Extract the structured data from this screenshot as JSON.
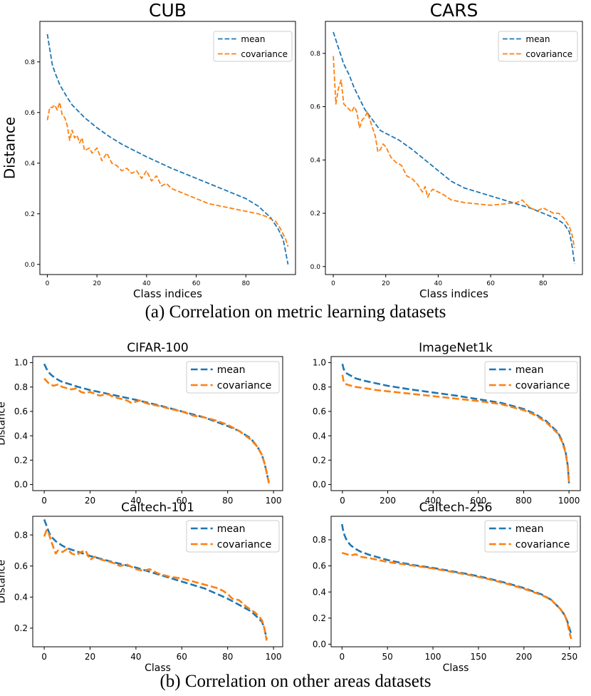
{
  "figure": {
    "caption_a": "(a) Correlation on metric learning datasets",
    "caption_b": "(b) Correlation on other areas datasets"
  },
  "colors": {
    "mean": "#1f77b4",
    "covariance": "#ff7f0e",
    "axis": "#000000"
  },
  "chart_data": [
    {
      "id": "cub",
      "type": "line",
      "title": "CUB",
      "xlabel": "Class indices",
      "ylabel": "Distance",
      "xlim": [
        -3,
        100
      ],
      "ylim": [
        -0.04,
        0.96
      ],
      "xticks": [
        0,
        20,
        40,
        60,
        80
      ],
      "yticks": [
        0.0,
        0.2,
        0.4,
        0.6,
        0.8
      ],
      "xtick_labels": [
        "0",
        "20",
        "40",
        "60",
        "80"
      ],
      "ytick_labels": [
        "0.0",
        "0.2",
        "0.4",
        "0.6",
        "0.8"
      ],
      "legend": [
        "mean",
        "covariance"
      ],
      "legend_position": "top-right",
      "series": [
        {
          "name": "mean",
          "x": [
            0,
            1,
            2,
            3,
            5,
            8,
            10,
            15,
            20,
            25,
            30,
            40,
            50,
            60,
            70,
            80,
            85,
            90,
            93,
            95,
            96,
            97
          ],
          "values": [
            0.91,
            0.85,
            0.79,
            0.76,
            0.71,
            0.66,
            0.63,
            0.58,
            0.54,
            0.505,
            0.475,
            0.425,
            0.38,
            0.34,
            0.3,
            0.26,
            0.23,
            0.185,
            0.14,
            0.1,
            0.05,
            0.0
          ]
        },
        {
          "name": "covariance",
          "x": [
            0,
            1,
            2,
            3,
            4,
            5,
            6,
            7,
            8,
            9,
            10,
            11,
            12,
            13,
            14,
            15,
            17,
            18,
            20,
            22,
            24,
            26,
            28,
            30,
            32,
            34,
            36,
            38,
            40,
            42,
            44,
            46,
            48,
            50,
            55,
            60,
            65,
            70,
            75,
            80,
            85,
            88,
            90,
            92,
            94,
            95,
            96,
            97
          ],
          "values": [
            0.57,
            0.62,
            0.62,
            0.63,
            0.61,
            0.64,
            0.59,
            0.58,
            0.55,
            0.49,
            0.53,
            0.5,
            0.51,
            0.48,
            0.5,
            0.45,
            0.46,
            0.44,
            0.46,
            0.41,
            0.44,
            0.4,
            0.39,
            0.37,
            0.38,
            0.36,
            0.37,
            0.34,
            0.37,
            0.33,
            0.35,
            0.31,
            0.32,
            0.3,
            0.28,
            0.26,
            0.24,
            0.23,
            0.22,
            0.21,
            0.2,
            0.19,
            0.18,
            0.17,
            0.14,
            0.12,
            0.1,
            0.07
          ]
        }
      ]
    },
    {
      "id": "cars",
      "type": "line",
      "title": "CARS",
      "xlabel": "Class indices",
      "ylabel": "",
      "xlim": [
        -3,
        95
      ],
      "ylim": [
        -0.03,
        0.92
      ],
      "xticks": [
        0,
        20,
        40,
        60,
        80
      ],
      "yticks": [
        0.0,
        0.2,
        0.4,
        0.6,
        0.8
      ],
      "xtick_labels": [
        "0",
        "20",
        "40",
        "60",
        "80"
      ],
      "ytick_labels": [
        "0.0",
        "0.2",
        "0.4",
        "0.6",
        "0.8"
      ],
      "legend": [
        "mean",
        "covariance"
      ],
      "legend_position": "top-right",
      "series": [
        {
          "name": "mean",
          "x": [
            0,
            2,
            4,
            6,
            8,
            10,
            12,
            15,
            18,
            20,
            25,
            30,
            35,
            40,
            45,
            50,
            55,
            60,
            65,
            70,
            75,
            80,
            85,
            88,
            90,
            91,
            92
          ],
          "values": [
            0.88,
            0.82,
            0.76,
            0.72,
            0.67,
            0.63,
            0.59,
            0.55,
            0.51,
            0.5,
            0.475,
            0.44,
            0.4,
            0.36,
            0.32,
            0.295,
            0.28,
            0.265,
            0.25,
            0.235,
            0.22,
            0.2,
            0.18,
            0.16,
            0.13,
            0.08,
            0.01
          ]
        },
        {
          "name": "covariance",
          "x": [
            0,
            1,
            2,
            3,
            4,
            5,
            6,
            7,
            8,
            9,
            10,
            11,
            12,
            13,
            14,
            15,
            16,
            17,
            18,
            19,
            20,
            22,
            24,
            26,
            28,
            30,
            32,
            34,
            35,
            36,
            37,
            38,
            40,
            42,
            45,
            50,
            55,
            60,
            65,
            70,
            72,
            75,
            78,
            80,
            82,
            84,
            86,
            88,
            90,
            91,
            92
          ],
          "values": [
            0.79,
            0.61,
            0.67,
            0.7,
            0.61,
            0.6,
            0.59,
            0.58,
            0.6,
            0.58,
            0.52,
            0.55,
            0.56,
            0.58,
            0.55,
            0.52,
            0.49,
            0.43,
            0.44,
            0.46,
            0.45,
            0.41,
            0.39,
            0.38,
            0.34,
            0.33,
            0.31,
            0.28,
            0.3,
            0.26,
            0.28,
            0.29,
            0.28,
            0.27,
            0.25,
            0.24,
            0.235,
            0.23,
            0.235,
            0.24,
            0.25,
            0.22,
            0.21,
            0.22,
            0.21,
            0.2,
            0.2,
            0.18,
            0.15,
            0.12,
            0.07
          ]
        }
      ]
    },
    {
      "id": "cifar100",
      "type": "line",
      "title": "CIFAR-100",
      "xlabel": "",
      "ylabel": "Distance",
      "xlim": [
        -5,
        104
      ],
      "ylim": [
        -0.05,
        1.05
      ],
      "xticks": [
        0,
        20,
        40,
        60,
        80,
        100
      ],
      "yticks": [
        0.0,
        0.2,
        0.4,
        0.6,
        0.8,
        1.0
      ],
      "xtick_labels": [
        "0",
        "20",
        "40",
        "60",
        "80",
        "100"
      ],
      "ytick_labels": [
        "0.0",
        "0.2",
        "0.4",
        "0.6",
        "0.8",
        "1.0"
      ],
      "legend": [
        "mean",
        "covariance"
      ],
      "legend_position": "top-right",
      "series": [
        {
          "name": "mean",
          "x": [
            0,
            1,
            2,
            3,
            5,
            8,
            10,
            15,
            20,
            25,
            30,
            40,
            50,
            60,
            70,
            80,
            85,
            90,
            93,
            95,
            96,
            97,
            98
          ],
          "values": [
            0.99,
            0.95,
            0.92,
            0.9,
            0.87,
            0.84,
            0.83,
            0.8,
            0.775,
            0.755,
            0.735,
            0.695,
            0.65,
            0.6,
            0.55,
            0.48,
            0.44,
            0.38,
            0.31,
            0.24,
            0.18,
            0.1,
            0.01
          ]
        },
        {
          "name": "covariance",
          "x": [
            0,
            1,
            2,
            4,
            6,
            8,
            10,
            12,
            14,
            16,
            18,
            20,
            24,
            28,
            30,
            32,
            34,
            36,
            38,
            40,
            42,
            44,
            46,
            50,
            55,
            60,
            65,
            70,
            75,
            80,
            85,
            90,
            93,
            95,
            96,
            97,
            98
          ],
          "values": [
            0.87,
            0.85,
            0.83,
            0.81,
            0.82,
            0.8,
            0.79,
            0.78,
            0.79,
            0.76,
            0.75,
            0.76,
            0.73,
            0.74,
            0.72,
            0.71,
            0.7,
            0.69,
            0.67,
            0.68,
            0.69,
            0.67,
            0.66,
            0.645,
            0.62,
            0.6,
            0.565,
            0.55,
            0.525,
            0.49,
            0.44,
            0.37,
            0.31,
            0.24,
            0.18,
            0.1,
            0.01
          ]
        }
      ]
    },
    {
      "id": "imagenet1k",
      "type": "line",
      "title": "ImageNet1k",
      "xlabel": "",
      "ylabel": "",
      "xlim": [
        -50,
        1050
      ],
      "ylim": [
        -0.05,
        1.05
      ],
      "xticks": [
        0,
        200,
        400,
        600,
        800,
        1000
      ],
      "yticks": [
        0.0,
        0.2,
        0.4,
        0.6,
        0.8,
        1.0
      ],
      "xtick_labels": [
        "0",
        "200",
        "400",
        "600",
        "800",
        "1000"
      ],
      "ytick_labels": [
        "0.0",
        "0.2",
        "0.4",
        "0.6",
        "0.8",
        "1.0"
      ],
      "legend": [
        "mean",
        "covariance"
      ],
      "legend_position": "top-right",
      "series": [
        {
          "name": "mean",
          "x": [
            0,
            5,
            10,
            20,
            40,
            60,
            100,
            150,
            200,
            300,
            400,
            500,
            600,
            700,
            800,
            850,
            900,
            950,
            970,
            985,
            995,
            1000
          ],
          "values": [
            0.99,
            0.95,
            0.93,
            0.91,
            0.89,
            0.87,
            0.85,
            0.83,
            0.81,
            0.78,
            0.755,
            0.73,
            0.7,
            0.67,
            0.62,
            0.58,
            0.52,
            0.43,
            0.36,
            0.27,
            0.15,
            0.01
          ]
        },
        {
          "name": "covariance",
          "x": [
            0,
            5,
            10,
            20,
            40,
            60,
            100,
            150,
            200,
            300,
            400,
            500,
            600,
            700,
            800,
            850,
            900,
            950,
            970,
            985,
            995,
            1000
          ],
          "values": [
            0.9,
            0.85,
            0.83,
            0.82,
            0.81,
            0.8,
            0.79,
            0.775,
            0.765,
            0.745,
            0.725,
            0.705,
            0.685,
            0.66,
            0.61,
            0.57,
            0.51,
            0.42,
            0.35,
            0.26,
            0.14,
            0.01
          ]
        }
      ]
    },
    {
      "id": "caltech101",
      "type": "line",
      "title": "Caltech-101",
      "xlabel": "Class",
      "ylabel": "Distance",
      "xlim": [
        -5,
        104
      ],
      "ylim": [
        0.08,
        0.92
      ],
      "xticks": [
        0,
        20,
        40,
        60,
        80,
        100
      ],
      "yticks": [
        0.2,
        0.4,
        0.6,
        0.8
      ],
      "xtick_labels": [
        "0",
        "20",
        "40",
        "60",
        "80",
        "100"
      ],
      "ytick_labels": [
        "0.2",
        "0.4",
        "0.6",
        "0.8"
      ],
      "legend": [
        "mean",
        "covariance"
      ],
      "legend_position": "top-right",
      "series": [
        {
          "name": "mean",
          "x": [
            0,
            1,
            2,
            3,
            5,
            8,
            10,
            15,
            20,
            25,
            30,
            40,
            50,
            60,
            70,
            80,
            85,
            90,
            93,
            95,
            96,
            97
          ],
          "values": [
            0.9,
            0.86,
            0.82,
            0.79,
            0.76,
            0.73,
            0.715,
            0.69,
            0.665,
            0.645,
            0.625,
            0.59,
            0.545,
            0.5,
            0.455,
            0.39,
            0.35,
            0.31,
            0.27,
            0.24,
            0.2,
            0.13
          ]
        },
        {
          "name": "covariance",
          "x": [
            0,
            1,
            2,
            3,
            4,
            5,
            6,
            8,
            10,
            12,
            14,
            16,
            18,
            20,
            22,
            25,
            28,
            30,
            33,
            36,
            40,
            43,
            46,
            50,
            55,
            60,
            65,
            70,
            75,
            78,
            80,
            82,
            85,
            88,
            90,
            92,
            94,
            95,
            96,
            97
          ],
          "values": [
            0.79,
            0.83,
            0.81,
            0.76,
            0.72,
            0.68,
            0.7,
            0.69,
            0.71,
            0.68,
            0.67,
            0.69,
            0.7,
            0.64,
            0.66,
            0.64,
            0.63,
            0.62,
            0.6,
            0.61,
            0.58,
            0.57,
            0.58,
            0.55,
            0.53,
            0.52,
            0.5,
            0.48,
            0.46,
            0.44,
            0.42,
            0.39,
            0.38,
            0.34,
            0.32,
            0.3,
            0.27,
            0.25,
            0.2,
            0.12
          ]
        }
      ]
    },
    {
      "id": "caltech256",
      "type": "line",
      "title": "Caltech-256",
      "xlabel": "Class",
      "ylabel": "",
      "xlim": [
        -12,
        262
      ],
      "ylim": [
        -0.02,
        0.98
      ],
      "xticks": [
        0,
        50,
        100,
        150,
        200,
        250
      ],
      "yticks": [
        0.0,
        0.2,
        0.4,
        0.6,
        0.8
      ],
      "xtick_labels": [
        "0",
        "50",
        "100",
        "150",
        "200",
        "250"
      ],
      "ytick_labels": [
        "0.0",
        "0.2",
        "0.4",
        "0.6",
        "0.8"
      ],
      "legend": [
        "mean",
        "covariance"
      ],
      "legend_position": "top-right",
      "series": [
        {
          "name": "mean",
          "x": [
            0,
            1,
            2,
            3,
            5,
            8,
            10,
            15,
            20,
            30,
            40,
            50,
            60,
            80,
            100,
            120,
            140,
            160,
            180,
            200,
            220,
            230,
            240,
            245,
            248,
            250,
            252
          ],
          "values": [
            0.92,
            0.88,
            0.85,
            0.83,
            0.8,
            0.77,
            0.755,
            0.73,
            0.71,
            0.685,
            0.665,
            0.645,
            0.63,
            0.605,
            0.585,
            0.56,
            0.535,
            0.505,
            0.47,
            0.43,
            0.38,
            0.34,
            0.27,
            0.22,
            0.17,
            0.12,
            0.08
          ]
        },
        {
          "name": "covariance",
          "x": [
            0,
            5,
            10,
            15,
            20,
            30,
            40,
            50,
            60,
            80,
            100,
            120,
            140,
            160,
            180,
            200,
            220,
            230,
            240,
            245,
            248,
            250,
            252
          ],
          "values": [
            0.7,
            0.69,
            0.68,
            0.69,
            0.67,
            0.66,
            0.645,
            0.63,
            0.62,
            0.6,
            0.58,
            0.555,
            0.53,
            0.5,
            0.465,
            0.425,
            0.375,
            0.34,
            0.27,
            0.22,
            0.16,
            0.09,
            0.04
          ]
        }
      ]
    }
  ]
}
